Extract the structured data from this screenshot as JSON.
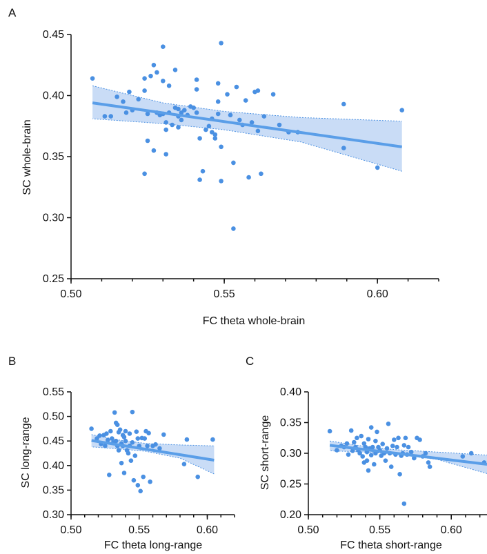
{
  "colors": {
    "points": "#4a90e2",
    "fit_line": "#5a9ee8",
    "ci_fill": "#c9dcf6",
    "ci_border": "#4a90e2"
  },
  "chart_data": [
    {
      "panel": "A",
      "type": "scatter",
      "xlabel": "FC theta whole-brain",
      "ylabel": "SC whole-brain",
      "xlim": [
        0.5,
        0.62
      ],
      "ylim": [
        0.25,
        0.45
      ],
      "xticks": [
        "0.50",
        "0.55",
        "0.60"
      ],
      "yticks": [
        "0.25",
        "0.30",
        "0.35",
        "0.40",
        "0.45"
      ],
      "grid": false,
      "fit": {
        "x": [
          0.507,
          0.608
        ],
        "y": [
          0.394,
          0.358
        ]
      },
      "ci": {
        "x": [
          0.507,
          0.53,
          0.55,
          0.575,
          0.608
        ],
        "upper": [
          0.408,
          0.394,
          0.387,
          0.382,
          0.379
        ],
        "lower": [
          0.381,
          0.377,
          0.372,
          0.362,
          0.338
        ]
      },
      "points": [
        [
          0.507,
          0.414
        ],
        [
          0.511,
          0.383
        ],
        [
          0.513,
          0.383
        ],
        [
          0.515,
          0.399
        ],
        [
          0.517,
          0.395
        ],
        [
          0.518,
          0.386
        ],
        [
          0.519,
          0.403
        ],
        [
          0.52,
          0.388
        ],
        [
          0.522,
          0.397
        ],
        [
          0.524,
          0.414
        ],
        [
          0.524,
          0.404
        ],
        [
          0.524,
          0.336
        ],
        [
          0.525,
          0.385
        ],
        [
          0.525,
          0.363
        ],
        [
          0.526,
          0.416
        ],
        [
          0.527,
          0.425
        ],
        [
          0.527,
          0.355
        ],
        [
          0.528,
          0.419
        ],
        [
          0.528,
          0.386
        ],
        [
          0.529,
          0.384
        ],
        [
          0.53,
          0.412
        ],
        [
          0.53,
          0.44
        ],
        [
          0.53,
          0.385
        ],
        [
          0.531,
          0.378
        ],
        [
          0.531,
          0.372
        ],
        [
          0.531,
          0.352
        ],
        [
          0.532,
          0.386
        ],
        [
          0.532,
          0.408
        ],
        [
          0.533,
          0.376
        ],
        [
          0.534,
          0.421
        ],
        [
          0.534,
          0.39
        ],
        [
          0.535,
          0.374
        ],
        [
          0.535,
          0.383
        ],
        [
          0.535,
          0.389
        ],
        [
          0.536,
          0.386
        ],
        [
          0.536,
          0.38
        ],
        [
          0.537,
          0.388
        ],
        [
          0.538,
          0.384
        ],
        [
          0.539,
          0.391
        ],
        [
          0.54,
          0.39
        ],
        [
          0.541,
          0.413
        ],
        [
          0.541,
          0.405
        ],
        [
          0.541,
          0.386
        ],
        [
          0.542,
          0.365
        ],
        [
          0.542,
          0.331
        ],
        [
          0.543,
          0.338
        ],
        [
          0.544,
          0.372
        ],
        [
          0.545,
          0.375
        ],
        [
          0.546,
          0.381
        ],
        [
          0.546,
          0.37
        ],
        [
          0.547,
          0.365
        ],
        [
          0.547,
          0.368
        ],
        [
          0.548,
          0.41
        ],
        [
          0.548,
          0.395
        ],
        [
          0.548,
          0.385
        ],
        [
          0.549,
          0.443
        ],
        [
          0.549,
          0.358
        ],
        [
          0.549,
          0.33
        ],
        [
          0.551,
          0.401
        ],
        [
          0.552,
          0.384
        ],
        [
          0.553,
          0.345
        ],
        [
          0.553,
          0.291
        ],
        [
          0.554,
          0.407
        ],
        [
          0.555,
          0.38
        ],
        [
          0.556,
          0.376
        ],
        [
          0.557,
          0.396
        ],
        [
          0.558,
          0.333
        ],
        [
          0.559,
          0.378
        ],
        [
          0.56,
          0.403
        ],
        [
          0.561,
          0.404
        ],
        [
          0.561,
          0.371
        ],
        [
          0.562,
          0.336
        ],
        [
          0.563,
          0.383
        ],
        [
          0.566,
          0.401
        ],
        [
          0.568,
          0.376
        ],
        [
          0.571,
          0.37
        ],
        [
          0.574,
          0.37
        ],
        [
          0.589,
          0.393
        ],
        [
          0.589,
          0.357
        ],
        [
          0.6,
          0.341
        ],
        [
          0.608,
          0.388
        ]
      ]
    },
    {
      "panel": "B",
      "type": "scatter",
      "xlabel": "FC theta long-range",
      "ylabel": "SC long-range",
      "xlim": [
        0.5,
        0.62
      ],
      "ylim": [
        0.3,
        0.55
      ],
      "xticks": [
        "0.50",
        "0.55",
        "0.60"
      ],
      "yticks": [
        "0.30",
        "0.35",
        "0.40",
        "0.45",
        "0.50",
        "0.55"
      ],
      "grid": false,
      "fit": {
        "x": [
          0.515,
          0.605
        ],
        "y": [
          0.451,
          0.411
        ]
      },
      "ci": {
        "x": [
          0.515,
          0.535,
          0.555,
          0.58,
          0.605
        ],
        "upper": [
          0.463,
          0.452,
          0.445,
          0.442,
          0.44
        ],
        "lower": [
          0.438,
          0.434,
          0.429,
          0.415,
          0.383
        ]
      },
      "points": [
        [
          0.515,
          0.475
        ],
        [
          0.519,
          0.455
        ],
        [
          0.521,
          0.461
        ],
        [
          0.522,
          0.444
        ],
        [
          0.524,
          0.462
        ],
        [
          0.525,
          0.44
        ],
        [
          0.526,
          0.465
        ],
        [
          0.527,
          0.452
        ],
        [
          0.528,
          0.381
        ],
        [
          0.529,
          0.47
        ],
        [
          0.53,
          0.455
        ],
        [
          0.531,
          0.447
        ],
        [
          0.532,
          0.508
        ],
        [
          0.533,
          0.487
        ],
        [
          0.533,
          0.45
        ],
        [
          0.534,
          0.483
        ],
        [
          0.534,
          0.44
        ],
        [
          0.535,
          0.468
        ],
        [
          0.535,
          0.431
        ],
        [
          0.536,
          0.473
        ],
        [
          0.537,
          0.445
        ],
        [
          0.537,
          0.405
        ],
        [
          0.538,
          0.462
        ],
        [
          0.538,
          0.44
        ],
        [
          0.539,
          0.458
        ],
        [
          0.539,
          0.385
        ],
        [
          0.54,
          0.47
        ],
        [
          0.54,
          0.45
        ],
        [
          0.541,
          0.431
        ],
        [
          0.542,
          0.425
        ],
        [
          0.543,
          0.465
        ],
        [
          0.543,
          0.44
        ],
        [
          0.544,
          0.41
        ],
        [
          0.545,
          0.509
        ],
        [
          0.545,
          0.447
        ],
        [
          0.546,
          0.37
        ],
        [
          0.547,
          0.42
        ],
        [
          0.548,
          0.469
        ],
        [
          0.549,
          0.455
        ],
        [
          0.549,
          0.36
        ],
        [
          0.55,
          0.439
        ],
        [
          0.55,
          0.44
        ],
        [
          0.551,
          0.348
        ],
        [
          0.552,
          0.456
        ],
        [
          0.553,
          0.377
        ],
        [
          0.554,
          0.455
        ],
        [
          0.555,
          0.47
        ],
        [
          0.556,
          0.44
        ],
        [
          0.557,
          0.466
        ],
        [
          0.558,
          0.367
        ],
        [
          0.56,
          0.44
        ],
        [
          0.562,
          0.443
        ],
        [
          0.565,
          0.435
        ],
        [
          0.568,
          0.463
        ],
        [
          0.583,
          0.403
        ],
        [
          0.585,
          0.453
        ],
        [
          0.593,
          0.377
        ],
        [
          0.604,
          0.453
        ]
      ]
    },
    {
      "panel": "C",
      "type": "scatter",
      "xlabel": "FC theta short-range",
      "ylabel": "SC short-range",
      "xlim": [
        0.5,
        0.625
      ],
      "ylim": [
        0.2,
        0.4
      ],
      "xticks": [
        "0.50",
        "0.55",
        "0.60"
      ],
      "yticks": [
        "0.20",
        "0.25",
        "0.30",
        "0.35",
        "0.40"
      ],
      "grid": false,
      "fit": {
        "x": [
          0.515,
          0.625
        ],
        "y": [
          0.313,
          0.282
        ]
      },
      "ci": {
        "x": [
          0.515,
          0.54,
          0.56,
          0.59,
          0.625
        ],
        "upper": [
          0.32,
          0.311,
          0.306,
          0.302,
          0.297
        ],
        "lower": [
          0.304,
          0.302,
          0.299,
          0.29,
          0.267
        ]
      },
      "points": [
        [
          0.515,
          0.336
        ],
        [
          0.52,
          0.305
        ],
        [
          0.523,
          0.312
        ],
        [
          0.525,
          0.31
        ],
        [
          0.527,
          0.316
        ],
        [
          0.528,
          0.298
        ],
        [
          0.53,
          0.337
        ],
        [
          0.531,
          0.304
        ],
        [
          0.532,
          0.318
        ],
        [
          0.533,
          0.31
        ],
        [
          0.534,
          0.325
        ],
        [
          0.535,
          0.305
        ],
        [
          0.536,
          0.3
        ],
        [
          0.537,
          0.328
        ],
        [
          0.538,
          0.295
        ],
        [
          0.539,
          0.316
        ],
        [
          0.539,
          0.285
        ],
        [
          0.54,
          0.31
        ],
        [
          0.541,
          0.302
        ],
        [
          0.541,
          0.288
        ],
        [
          0.542,
          0.323
        ],
        [
          0.542,
          0.272
        ],
        [
          0.543,
          0.308
        ],
        [
          0.544,
          0.297
        ],
        [
          0.544,
          0.342
        ],
        [
          0.545,
          0.31
        ],
        [
          0.546,
          0.282
        ],
        [
          0.547,
          0.32
        ],
        [
          0.547,
          0.3
        ],
        [
          0.548,
          0.335
        ],
        [
          0.549,
          0.31
        ],
        [
          0.55,
          0.305
        ],
        [
          0.551,
          0.296
        ],
        [
          0.552,
          0.315
        ],
        [
          0.553,
          0.3
        ],
        [
          0.554,
          0.288
        ],
        [
          0.555,
          0.308
        ],
        [
          0.556,
          0.348
        ],
        [
          0.557,
          0.3
        ],
        [
          0.558,
          0.278
        ],
        [
          0.559,
          0.312
        ],
        [
          0.56,
          0.322
        ],
        [
          0.561,
          0.298
        ],
        [
          0.562,
          0.31
        ],
        [
          0.563,
          0.325
        ],
        [
          0.564,
          0.266
        ],
        [
          0.565,
          0.296
        ],
        [
          0.566,
          0.3
        ],
        [
          0.567,
          0.313
        ],
        [
          0.567,
          0.218
        ],
        [
          0.568,
          0.325
        ],
        [
          0.569,
          0.298
        ],
        [
          0.57,
          0.31
        ],
        [
          0.572,
          0.302
        ],
        [
          0.574,
          0.292
        ],
        [
          0.576,
          0.325
        ],
        [
          0.578,
          0.322
        ],
        [
          0.58,
          0.295
        ],
        [
          0.582,
          0.3
        ],
        [
          0.584,
          0.285
        ],
        [
          0.585,
          0.278
        ],
        [
          0.608,
          0.295
        ],
        [
          0.614,
          0.3
        ],
        [
          0.623,
          0.285
        ]
      ]
    }
  ]
}
